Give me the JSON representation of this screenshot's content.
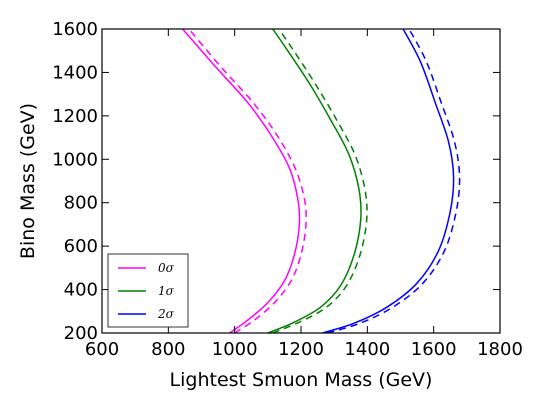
{
  "chart_data": {
    "type": "line",
    "xlabel": "Lightest Smuon Mass (GeV)",
    "ylabel": "Bino Mass (GeV)",
    "xlim": [
      600,
      1800
    ],
    "ylim": [
      200,
      1600
    ],
    "xticks": [
      "600",
      "800",
      "1000",
      "1200",
      "1400",
      "1600",
      "1800"
    ],
    "yticks": [
      "200",
      "400",
      "600",
      "800",
      "1000",
      "1200",
      "1400",
      "1600"
    ],
    "grid": false,
    "legend_position": "lower-left",
    "series": [
      {
        "name": "0σ",
        "color": "#ff00ff",
        "solid": [
          [
            985,
            200
          ],
          [
            1040,
            260
          ],
          [
            1100,
            340
          ],
          [
            1150,
            440
          ],
          [
            1180,
            560
          ],
          [
            1195,
            700
          ],
          [
            1190,
            820
          ],
          [
            1165,
            960
          ],
          [
            1110,
            1110
          ],
          [
            1040,
            1260
          ],
          [
            940,
            1430
          ],
          [
            843,
            1600
          ]
        ],
        "dashed": [
          [
            1000,
            200
          ],
          [
            1060,
            260
          ],
          [
            1120,
            340
          ],
          [
            1170,
            440
          ],
          [
            1200,
            560
          ],
          [
            1215,
            700
          ],
          [
            1210,
            820
          ],
          [
            1182,
            960
          ],
          [
            1128,
            1110
          ],
          [
            1056,
            1260
          ],
          [
            956,
            1430
          ],
          [
            862,
            1600
          ]
        ]
      },
      {
        "name": "1σ",
        "color": "#008000",
        "solid": [
          [
            1100,
            200
          ],
          [
            1180,
            250
          ],
          [
            1260,
            320
          ],
          [
            1320,
            420
          ],
          [
            1360,
            560
          ],
          [
            1380,
            720
          ],
          [
            1375,
            860
          ],
          [
            1345,
            1020
          ],
          [
            1290,
            1180
          ],
          [
            1225,
            1350
          ],
          [
            1160,
            1500
          ],
          [
            1115,
            1600
          ]
        ],
        "dashed": [
          [
            1115,
            200
          ],
          [
            1195,
            250
          ],
          [
            1278,
            320
          ],
          [
            1338,
            420
          ],
          [
            1378,
            560
          ],
          [
            1398,
            720
          ],
          [
            1393,
            860
          ],
          [
            1363,
            1020
          ],
          [
            1308,
            1180
          ],
          [
            1242,
            1350
          ],
          [
            1178,
            1500
          ],
          [
            1133,
            1600
          ]
        ]
      },
      {
        "name": "2σ",
        "color": "#0000ff",
        "solid": [
          [
            1265,
            200
          ],
          [
            1360,
            245
          ],
          [
            1460,
            320
          ],
          [
            1550,
            430
          ],
          [
            1615,
            580
          ],
          [
            1650,
            760
          ],
          [
            1660,
            920
          ],
          [
            1645,
            1080
          ],
          [
            1605,
            1260
          ],
          [
            1560,
            1450
          ],
          [
            1508,
            1600
          ]
        ],
        "dashed": [
          [
            1280,
            200
          ],
          [
            1378,
            245
          ],
          [
            1478,
            320
          ],
          [
            1568,
            430
          ],
          [
            1633,
            580
          ],
          [
            1668,
            760
          ],
          [
            1678,
            920
          ],
          [
            1663,
            1080
          ],
          [
            1623,
            1260
          ],
          [
            1578,
            1450
          ],
          [
            1526,
            1600
          ]
        ]
      }
    ]
  }
}
